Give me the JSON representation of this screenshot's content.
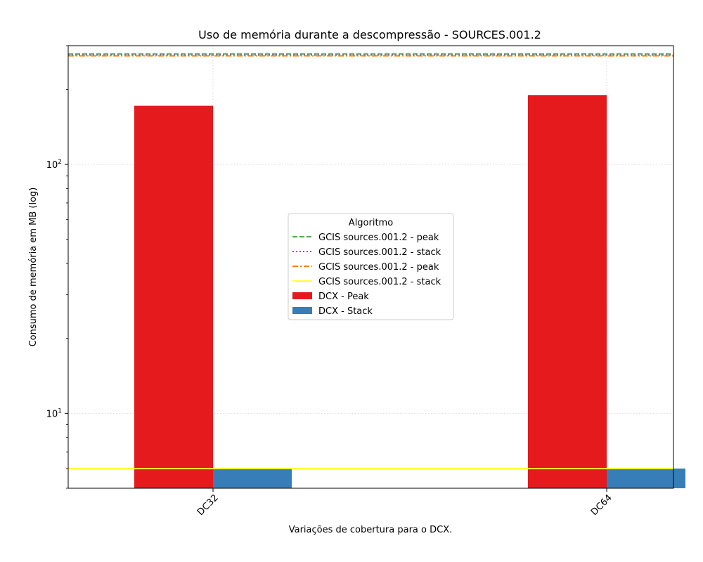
{
  "chart_data": {
    "type": "bar",
    "title": "Uso de memória durante a descompressão -  SOURCES.001.2",
    "xlabel": "Variações de cobertura para o DCX.",
    "ylabel": "Consumo de memória em MB (log)",
    "yscale": "log",
    "ylim": [
      5.0,
      300
    ],
    "grid": true,
    "categories": [
      "DC32",
      "DC64"
    ],
    "series": [
      {
        "name": "DCX - Peak",
        "color": "#e41a1c",
        "values": [
          172,
          190
        ]
      },
      {
        "name": "DCX - Stack",
        "color": "#377eb8",
        "values": [
          6.0,
          6.0
        ]
      }
    ],
    "reference_lines": [
      {
        "name": "GCIS sources.001.2 - peak",
        "color": "#4daf4a",
        "style": "dashed",
        "value": 278
      },
      {
        "name": "GCIS sources.001.2 - stack",
        "color": "#984ea3",
        "style": "dotted",
        "value": 275
      },
      {
        "name": "GCIS sources.001.2 - peak",
        "color": "#ff7f00",
        "style": "dashdot",
        "value": 273
      },
      {
        "name": "GCIS sources.001.2 - stack",
        "color": "#ffff33",
        "style": "solid",
        "value": 6.0
      }
    ],
    "yticks": [
      {
        "base": "10",
        "exp": "1",
        "value": 10
      },
      {
        "base": "10",
        "exp": "2",
        "value": 100
      }
    ],
    "legend": {
      "title": "Algoritmo",
      "placement": "center"
    }
  }
}
